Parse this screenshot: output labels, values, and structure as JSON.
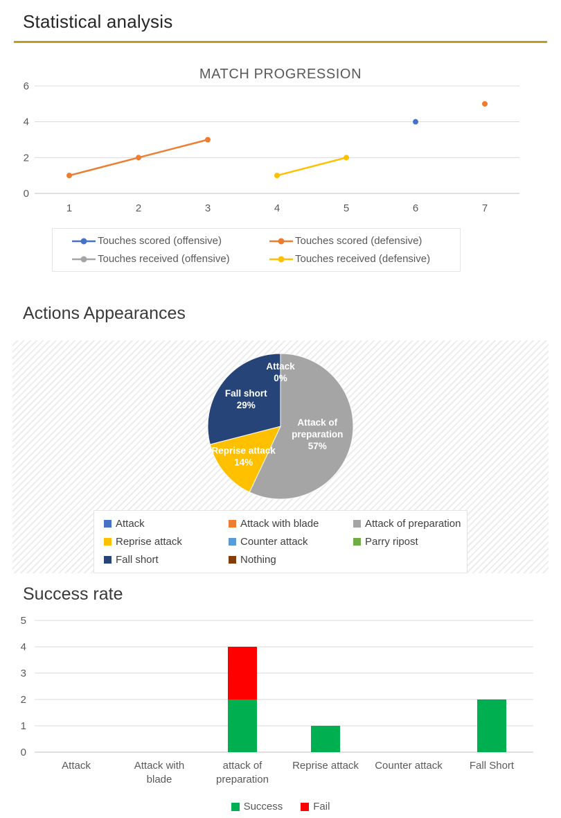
{
  "page": {
    "title": "Statistical analysis",
    "accent_rule_color": "#BF9D20"
  },
  "sections": {
    "actions": {
      "title": "Actions Appearances"
    },
    "success": {
      "title": "Success rate"
    }
  },
  "chart_data": [
    {
      "type": "line",
      "title": "MATCH PROGRESSION",
      "x": [
        1,
        2,
        3,
        4,
        5,
        6,
        7
      ],
      "ylim": [
        0,
        6
      ],
      "yticks": [
        0,
        2,
        4,
        6
      ],
      "grid": true,
      "legend_position": "bottom",
      "series": [
        {
          "name": "Touches scored (offensive)",
          "color": "#4472C4",
          "values": [
            null,
            null,
            null,
            null,
            null,
            4,
            null
          ]
        },
        {
          "name": "Touches scored (defensive)",
          "color": "#ED7D31",
          "values": [
            1,
            2,
            3,
            null,
            null,
            null,
            5
          ]
        },
        {
          "name": "Touches received (offensive)",
          "color": "#A5A5A5",
          "values": [
            null,
            null,
            null,
            null,
            null,
            null,
            null
          ]
        },
        {
          "name": "Touches received (defensive)",
          "color": "#FFC000",
          "values": [
            null,
            null,
            null,
            1,
            2,
            null,
            null
          ]
        }
      ]
    },
    {
      "type": "pie",
      "title": "Actions Appearances",
      "label_color": "#FFFFFF",
      "legend_position": "bottom",
      "slices": [
        {
          "label": "Attack",
          "pct": 0,
          "color": "#4472C4",
          "show_label": true,
          "label_radius": 0.74
        },
        {
          "label": "Attack with blade",
          "pct": 0,
          "color": "#ED7D31",
          "show_label": false
        },
        {
          "label": "Attack of preparation",
          "pct": 57,
          "color": "#A5A5A5",
          "show_label": true,
          "label_radius": 0.52
        },
        {
          "label": "Reprise attack",
          "pct": 14,
          "color": "#FFC000",
          "show_label": true,
          "label_radius": 0.66
        },
        {
          "label": "Counter attack",
          "pct": 0,
          "color": "#5B9BD5",
          "show_label": false
        },
        {
          "label": "Parry ripost",
          "pct": 0,
          "color": "#70AD47",
          "show_label": false
        },
        {
          "label": "Fall short",
          "pct": 29,
          "color": "#264478",
          "show_label": true,
          "label_radius": 0.6
        },
        {
          "label": "Nothing",
          "pct": 0,
          "color": "#843C0C",
          "show_label": false
        }
      ]
    },
    {
      "type": "bar",
      "stacked": true,
      "title": "Success rate",
      "categories": [
        "Attack",
        "Attack with blade",
        "attack of preparation",
        "Reprise attack",
        "Counter attack",
        "Fall Short"
      ],
      "ylim": [
        0,
        5
      ],
      "yticks": [
        0,
        1,
        2,
        3,
        4,
        5
      ],
      "grid": true,
      "legend_position": "bottom",
      "series": [
        {
          "name": "Success",
          "color": "#00B050",
          "values": [
            0,
            0,
            2,
            1,
            0,
            2
          ]
        },
        {
          "name": "Fail",
          "color": "#FF0000",
          "values": [
            0,
            0,
            2,
            0,
            0,
            0
          ]
        }
      ]
    }
  ]
}
